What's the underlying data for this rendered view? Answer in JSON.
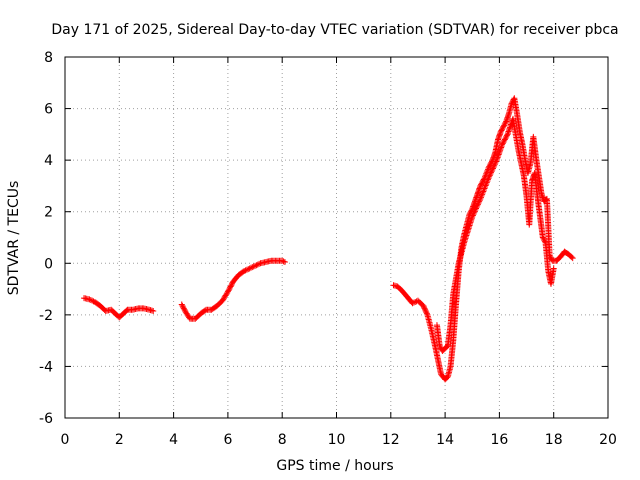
{
  "chart_data": {
    "type": "scatter",
    "title": "Day 171 of 2025, Sidereal Day-to-day VTEC variation (SDTVAR) for receiver pbca",
    "xlabel": "GPS time / hours",
    "ylabel": "SDTVAR / TECUs",
    "xlim": [
      0,
      20
    ],
    "ylim": [
      -6,
      8
    ],
    "xticks": [
      0,
      2,
      4,
      6,
      8,
      10,
      12,
      14,
      16,
      18,
      20
    ],
    "yticks": [
      -6,
      -4,
      -2,
      0,
      2,
      4,
      6,
      8
    ],
    "xtick_labels": [
      "0",
      "2",
      "4",
      "6",
      "8",
      "10",
      "12",
      "14",
      "16",
      "18",
      "20"
    ],
    "ytick_labels": [
      "-6",
      "-4",
      "-2",
      "0",
      "2",
      "4",
      "6",
      "8"
    ],
    "grid": true,
    "marker": "+",
    "color": "#ff0000",
    "series": [
      {
        "name": "segment-1",
        "points": [
          [
            0.7,
            -1.35
          ],
          [
            0.9,
            -1.4
          ],
          [
            1.1,
            -1.5
          ],
          [
            1.3,
            -1.65
          ],
          [
            1.5,
            -1.85
          ],
          [
            1.7,
            -1.8
          ],
          [
            1.85,
            -1.95
          ],
          [
            2.0,
            -2.1
          ],
          [
            2.15,
            -1.95
          ],
          [
            2.3,
            -1.8
          ],
          [
            2.5,
            -1.8
          ],
          [
            2.7,
            -1.75
          ],
          [
            2.9,
            -1.75
          ],
          [
            3.1,
            -1.8
          ],
          [
            3.25,
            -1.85
          ]
        ]
      },
      {
        "name": "segment-2",
        "points": [
          [
            4.3,
            -1.6
          ],
          [
            4.45,
            -1.9
          ],
          [
            4.6,
            -2.15
          ],
          [
            4.8,
            -2.15
          ],
          [
            5.0,
            -1.95
          ],
          [
            5.2,
            -1.8
          ],
          [
            5.4,
            -1.8
          ],
          [
            5.6,
            -1.65
          ],
          [
            5.8,
            -1.45
          ],
          [
            6.0,
            -1.1
          ],
          [
            6.2,
            -0.7
          ],
          [
            6.4,
            -0.45
          ],
          [
            6.6,
            -0.3
          ],
          [
            6.8,
            -0.2
          ],
          [
            7.0,
            -0.1
          ],
          [
            7.2,
            0.0
          ],
          [
            7.4,
            0.05
          ],
          [
            7.6,
            0.1
          ],
          [
            7.8,
            0.1
          ],
          [
            8.0,
            0.1
          ],
          [
            8.1,
            0.05
          ]
        ]
      },
      {
        "name": "segment-3",
        "points": [
          [
            12.1,
            -0.85
          ],
          [
            12.25,
            -0.9
          ],
          [
            12.4,
            -1.05
          ],
          [
            12.6,
            -1.3
          ],
          [
            12.8,
            -1.55
          ],
          [
            13.0,
            -1.45
          ],
          [
            13.2,
            -1.65
          ],
          [
            13.35,
            -2.0
          ],
          [
            13.5,
            -2.6
          ],
          [
            13.65,
            -3.3
          ],
          [
            13.75,
            -3.8
          ],
          [
            13.85,
            -4.3
          ],
          [
            14.0,
            -4.5
          ],
          [
            14.1,
            -4.4
          ],
          [
            14.2,
            -4.0
          ],
          [
            14.3,
            -3.0
          ],
          [
            14.4,
            -1.6
          ],
          [
            14.5,
            -0.3
          ],
          [
            14.6,
            0.6
          ],
          [
            14.7,
            1.1
          ],
          [
            14.8,
            1.5
          ],
          [
            14.9,
            1.9
          ],
          [
            15.0,
            2.1
          ],
          [
            15.1,
            2.4
          ],
          [
            15.2,
            2.7
          ],
          [
            15.3,
            3.0
          ],
          [
            15.45,
            3.3
          ],
          [
            15.6,
            3.7
          ],
          [
            15.75,
            4.0
          ],
          [
            15.85,
            4.3
          ],
          [
            15.95,
            4.8
          ],
          [
            16.05,
            5.1
          ],
          [
            16.15,
            5.3
          ],
          [
            16.25,
            5.5
          ],
          [
            16.35,
            5.8
          ],
          [
            16.45,
            6.2
          ],
          [
            16.55,
            6.4
          ],
          [
            16.65,
            5.8
          ],
          [
            16.75,
            5.1
          ],
          [
            16.85,
            4.6
          ],
          [
            16.95,
            4.0
          ],
          [
            17.05,
            3.5
          ],
          [
            17.15,
            3.9
          ],
          [
            17.25,
            4.9
          ],
          [
            17.35,
            4.1
          ],
          [
            17.45,
            3.4
          ],
          [
            17.55,
            2.7
          ],
          [
            17.65,
            2.4
          ],
          [
            17.75,
            2.5
          ],
          [
            17.85,
            0.3
          ],
          [
            17.95,
            0.1
          ],
          [
            18.1,
            0.1
          ],
          [
            18.25,
            0.25
          ],
          [
            18.4,
            0.45
          ],
          [
            18.55,
            0.35
          ],
          [
            18.7,
            0.2
          ]
        ]
      },
      {
        "name": "segment-3-lower-branch",
        "points": [
          [
            13.7,
            -2.4
          ],
          [
            13.8,
            -3.2
          ],
          [
            13.9,
            -3.4
          ],
          [
            14.0,
            -3.3
          ],
          [
            14.1,
            -3.2
          ],
          [
            14.2,
            -2.4
          ],
          [
            14.3,
            -1.2
          ],
          [
            14.4,
            -0.6
          ],
          [
            14.5,
            0.0
          ],
          [
            14.6,
            0.4
          ],
          [
            14.7,
            0.8
          ],
          [
            14.85,
            1.3
          ],
          [
            15.0,
            1.8
          ],
          [
            15.3,
            2.5
          ],
          [
            15.6,
            3.3
          ],
          [
            15.9,
            4.0
          ],
          [
            16.1,
            4.6
          ],
          [
            16.3,
            5.0
          ],
          [
            16.5,
            5.6
          ],
          [
            16.6,
            5.0
          ],
          [
            16.7,
            4.4
          ],
          [
            16.8,
            3.9
          ],
          [
            16.9,
            3.4
          ],
          [
            17.0,
            2.6
          ],
          [
            17.1,
            1.5
          ],
          [
            17.2,
            3.2
          ],
          [
            17.3,
            3.5
          ],
          [
            17.4,
            2.6
          ],
          [
            17.5,
            1.8
          ],
          [
            17.6,
            1.0
          ],
          [
            17.7,
            0.8
          ],
          [
            17.8,
            -0.3
          ],
          [
            17.9,
            -0.8
          ],
          [
            18.0,
            -0.2
          ]
        ]
      }
    ]
  }
}
